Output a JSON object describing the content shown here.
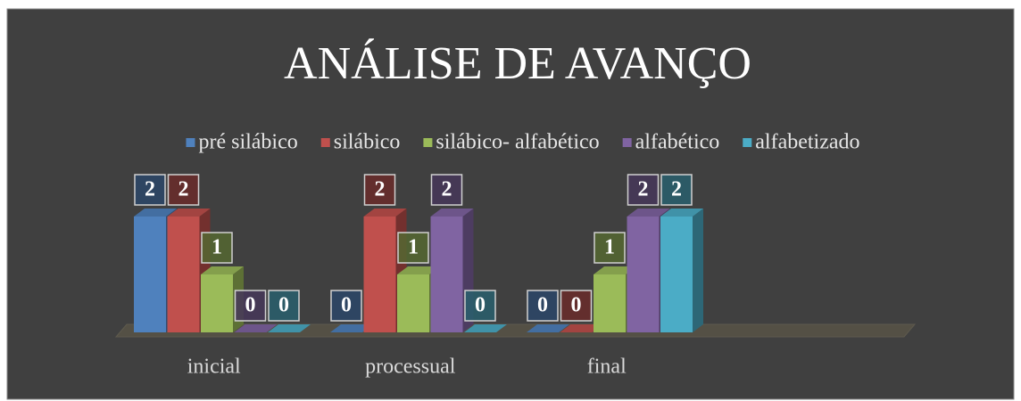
{
  "chart_data": {
    "type": "bar3d",
    "title": "ANÁLISE DE AVANÇO",
    "categories": [
      "inicial",
      "processual",
      "final"
    ],
    "series": [
      {
        "name": "pré silábico",
        "color": "#4f81bd",
        "values": [
          2,
          0,
          0
        ]
      },
      {
        "name": "silábico",
        "color": "#c0504d",
        "values": [
          2,
          2,
          0
        ]
      },
      {
        "name": "silábico- alfabético",
        "color": "#9bbb59",
        "values": [
          1,
          1,
          1
        ]
      },
      {
        "name": "alfabético",
        "color": "#8064a2",
        "values": [
          0,
          2,
          2
        ]
      },
      {
        "name": "alfabetizado",
        "color": "#4bacc6",
        "values": [
          0,
          0,
          2
        ]
      }
    ],
    "legend": "top"
  }
}
